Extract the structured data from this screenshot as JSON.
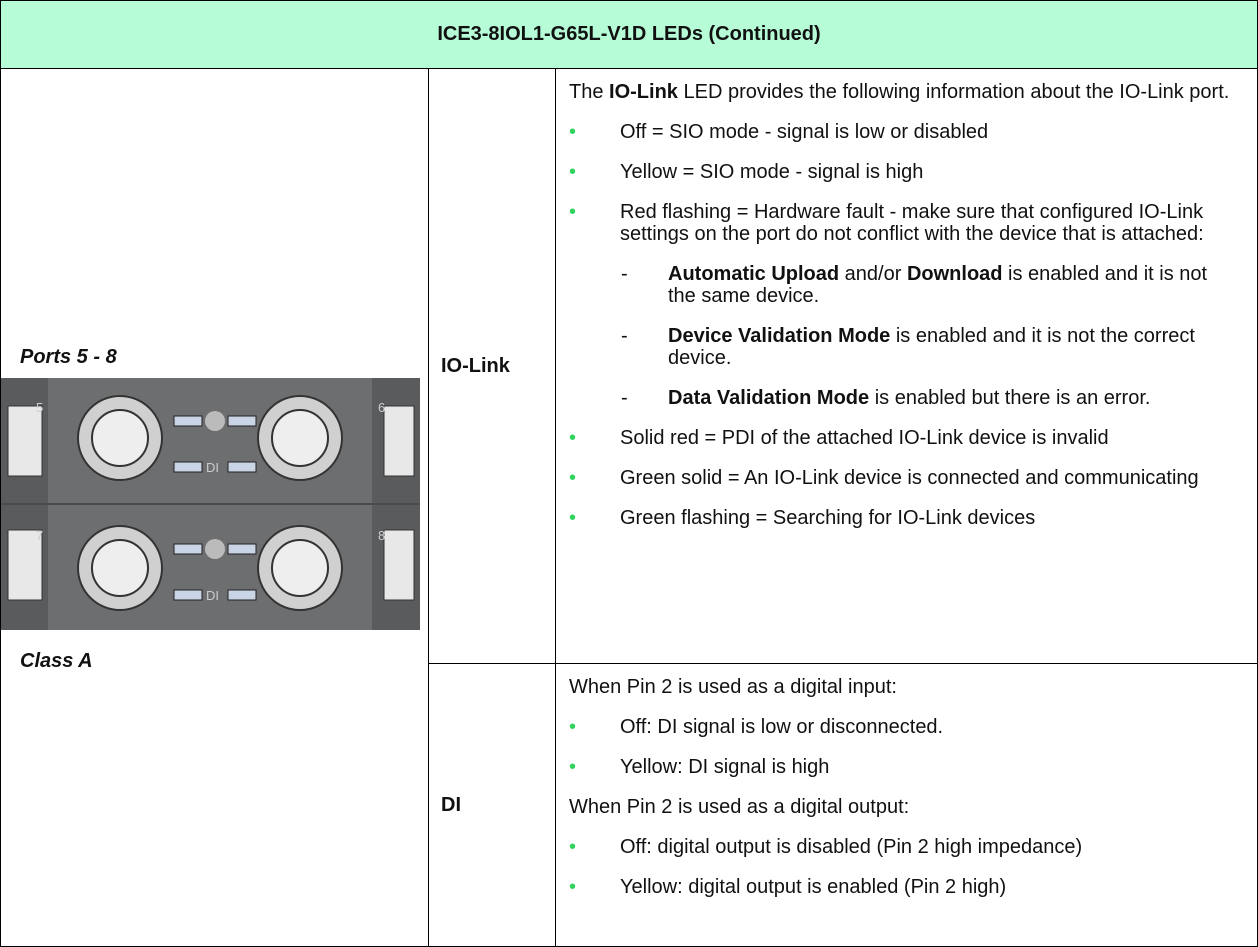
{
  "header": {
    "title": "ICE3-8IOL1-G65L-V1D LEDs (Continued)"
  },
  "left": {
    "ports_label": "Ports 5 - 8",
    "class_label": "Class A",
    "image_labels": [
      "5",
      "6",
      "7",
      "8",
      "DI",
      "DI"
    ]
  },
  "rows": [
    {
      "led": "IO-Link",
      "content": [
        {
          "kind": "p",
          "runs": [
            {
              "t": "The "
            },
            {
              "t": "IO-Link",
              "b": true
            },
            {
              "t": " LED provides the following information about the IO-Link port."
            }
          ]
        },
        {
          "kind": "bullet",
          "runs": [
            {
              "t": "Off = SIO mode - signal is low or disabled"
            }
          ]
        },
        {
          "kind": "bullet",
          "runs": [
            {
              "t": "Yellow = SIO mode - signal is high"
            }
          ]
        },
        {
          "kind": "bullet",
          "runs": [
            {
              "t": "Red flashing = Hardware fault - make sure that configured IO-Link settings on the port do not conflict with the device that is attached:"
            }
          ]
        },
        {
          "kind": "dash",
          "runs": [
            {
              "t": "Automatic Upload",
              "b": true
            },
            {
              "t": " and/or "
            },
            {
              "t": "Download",
              "b": true
            },
            {
              "t": " is enabled and it is not the same device."
            }
          ]
        },
        {
          "kind": "dash",
          "runs": [
            {
              "t": "Device Validation Mode",
              "b": true
            },
            {
              "t": " is enabled and it is not the correct device."
            }
          ]
        },
        {
          "kind": "dash",
          "runs": [
            {
              "t": "Data Validation Mode",
              "b": true
            },
            {
              "t": " is enabled but there is an error."
            }
          ]
        },
        {
          "kind": "bullet",
          "runs": [
            {
              "t": "Solid red = PDI of the attached IO-Link device is invalid"
            }
          ]
        },
        {
          "kind": "bullet",
          "runs": [
            {
              "t": "Green solid = An IO-Link device is connected and communicating"
            }
          ]
        },
        {
          "kind": "bullet",
          "runs": [
            {
              "t": "Green flashing = Searching for IO-Link devices"
            }
          ]
        }
      ]
    },
    {
      "led": "DI",
      "content": [
        {
          "kind": "p",
          "runs": [
            {
              "t": "When Pin 2 is used as a digital input:"
            }
          ]
        },
        {
          "kind": "bullet",
          "runs": [
            {
              "t": "Off: DI signal is low or disconnected."
            }
          ]
        },
        {
          "kind": "bullet",
          "runs": [
            {
              "t": "Yellow: DI signal is high"
            }
          ]
        },
        {
          "kind": "p",
          "runs": [
            {
              "t": "When Pin 2 is used as a digital output:"
            }
          ]
        },
        {
          "kind": "bullet",
          "runs": [
            {
              "t": "Off: digital output is disabled (Pin 2 high impedance)"
            }
          ]
        },
        {
          "kind": "bullet",
          "runs": [
            {
              "t": "Yellow: digital output is enabled (Pin 2 high)"
            }
          ]
        }
      ]
    }
  ]
}
